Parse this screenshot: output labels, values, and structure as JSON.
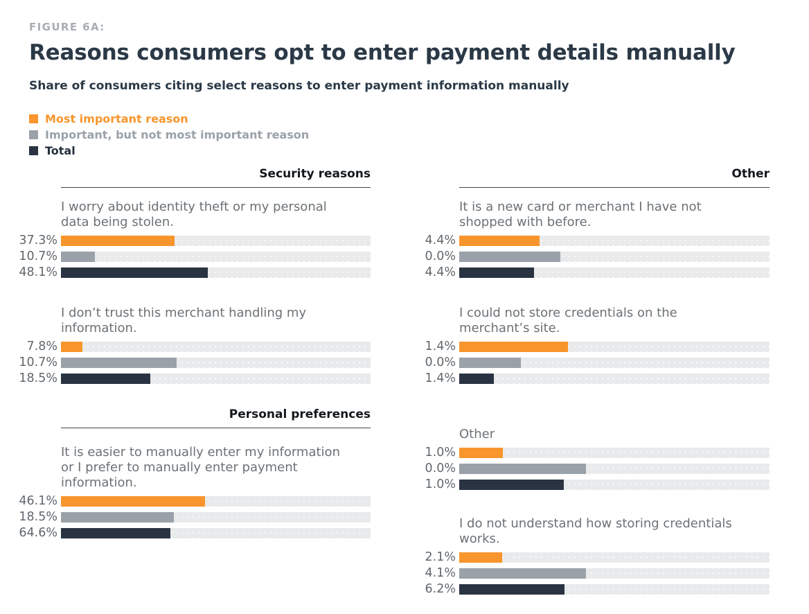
{
  "figure": {
    "eyebrow": "FIGURE 6A:",
    "title": "Reasons consumers opt to enter payment details manually",
    "subtitle": "Share of consumers citing select reasons to enter payment information manually"
  },
  "colors": {
    "series": [
      "#f8952c",
      "#9aa1a9",
      "#293342"
    ],
    "track": "#e9eaeb",
    "question_text": "#6b7176",
    "title_text": "#2b3947"
  },
  "legend": {
    "items": [
      {
        "label": "Most important reason",
        "color": "#f8952c"
      },
      {
        "label": "Important, but not most important reason",
        "color": "#9aa1a9"
      },
      {
        "label": "Total",
        "color": "#293342"
      }
    ]
  },
  "chart_data": {
    "type": "bar",
    "orientation": "horizontal",
    "unit": "%",
    "series_names": [
      "Most important reason",
      "Important, but not most important reason",
      "Total"
    ],
    "legend_position": "top-left",
    "track_full_scale_percent": 100,
    "columns": [
      {
        "sections": [
          {
            "header": "Security reasons",
            "items": [
              {
                "question": "I worry about identity theft or my personal data being stolen.",
                "values": [
                  37.3,
                  10.7,
                  48.1
                ],
                "labels": [
                  "37.3%",
                  "10.7%",
                  "48.1%"
                ],
                "bar_fraction_of_track": [
                  0.367,
                  0.11,
                  0.474
                ]
              },
              {
                "question": "I don’t trust this merchant handling my information.",
                "values": [
                  7.8,
                  10.7,
                  18.5
                ],
                "labels": [
                  "7.8%",
                  "10.7%",
                  "18.5%"
                ],
                "bar_fraction_of_track": [
                  0.07,
                  0.374,
                  0.289
                ]
              }
            ]
          },
          {
            "header": "Personal preferences",
            "items": [
              {
                "question": "It is easier to manually enter my information or I prefer to manually enter payment information.",
                "values": [
                  46.1,
                  18.5,
                  64.6
                ],
                "labels": [
                  "46.1%",
                  "18.5%",
                  "64.6%"
                ],
                "bar_fraction_of_track": [
                  0.465,
                  0.365,
                  0.353
                ]
              }
            ]
          }
        ]
      },
      {
        "sections": [
          {
            "header": "Other",
            "items": [
              {
                "question": "It is a new card or merchant I have not shopped with before.",
                "values": [
                  4.4,
                  0.0,
                  4.4
                ],
                "labels": [
                  "4.4%",
                  "0.0%",
                  "4.4%"
                ],
                "bar_fraction_of_track": [
                  0.259,
                  0.327,
                  0.24
                ]
              },
              {
                "question": "I could not store credentials on the merchant’s site.",
                "values": [
                  1.4,
                  0.0,
                  1.4
                ],
                "labels": [
                  "1.4%",
                  "0.0%",
                  "1.4%"
                ],
                "bar_fraction_of_track": [
                  0.351,
                  0.199,
                  0.112
                ]
              },
              {
                "question": "Other",
                "values": [
                  1.0,
                  0.0,
                  1.0
                ],
                "labels": [
                  "1.0%",
                  "0.0%",
                  "1.0%"
                ],
                "bar_fraction_of_track": [
                  0.141,
                  0.409,
                  0.337
                ]
              },
              {
                "question": "I do not understand how storing credentials works.",
                "values": [
                  2.1,
                  4.1,
                  6.2
                ],
                "labels": [
                  "2.1%",
                  "4.1%",
                  "6.2%"
                ],
                "bar_fraction_of_track": [
                  0.139,
                  0.409,
                  0.339
                ]
              }
            ]
          }
        ]
      }
    ]
  }
}
